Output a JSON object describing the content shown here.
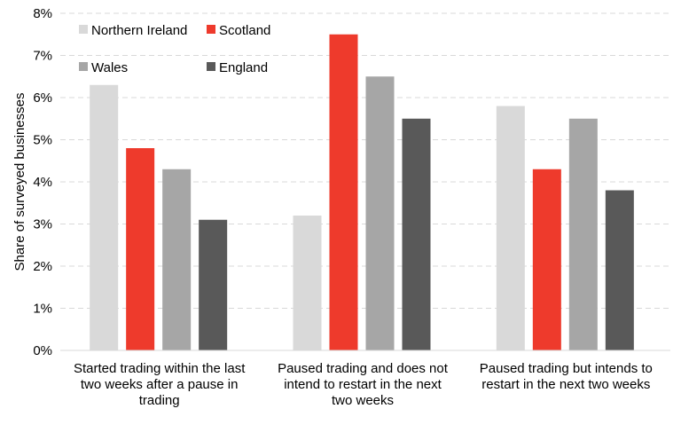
{
  "chart_data": {
    "type": "bar",
    "categories": [
      [
        "Started trading within the last",
        "two weeks after a pause in",
        "trading"
      ],
      [
        "Paused trading and does not",
        "intend to restart in the next",
        "two weeks"
      ],
      [
        "Paused trading but intends to",
        "restart in the next two weeks"
      ]
    ],
    "series": [
      {
        "name": "Northern Ireland",
        "color": "#d9d9d9",
        "values": [
          6.3,
          3.2,
          5.8
        ]
      },
      {
        "name": "Scotland",
        "color": "#ee3a2c",
        "values": [
          4.8,
          7.5,
          4.3
        ]
      },
      {
        "name": "Wales",
        "color": "#a6a6a6",
        "values": [
          4.3,
          6.5,
          5.5
        ]
      },
      {
        "name": "England",
        "color": "#595959",
        "values": [
          3.1,
          5.5,
          3.8
        ]
      }
    ],
    "ylabel": "Share of surveyed businesses",
    "ylim": [
      0,
      8
    ],
    "yticks": [
      "0%",
      "1%",
      "2%",
      "3%",
      "4%",
      "5%",
      "6%",
      "7%",
      "8%"
    ],
    "grid": true,
    "legend_position": "top-left"
  }
}
